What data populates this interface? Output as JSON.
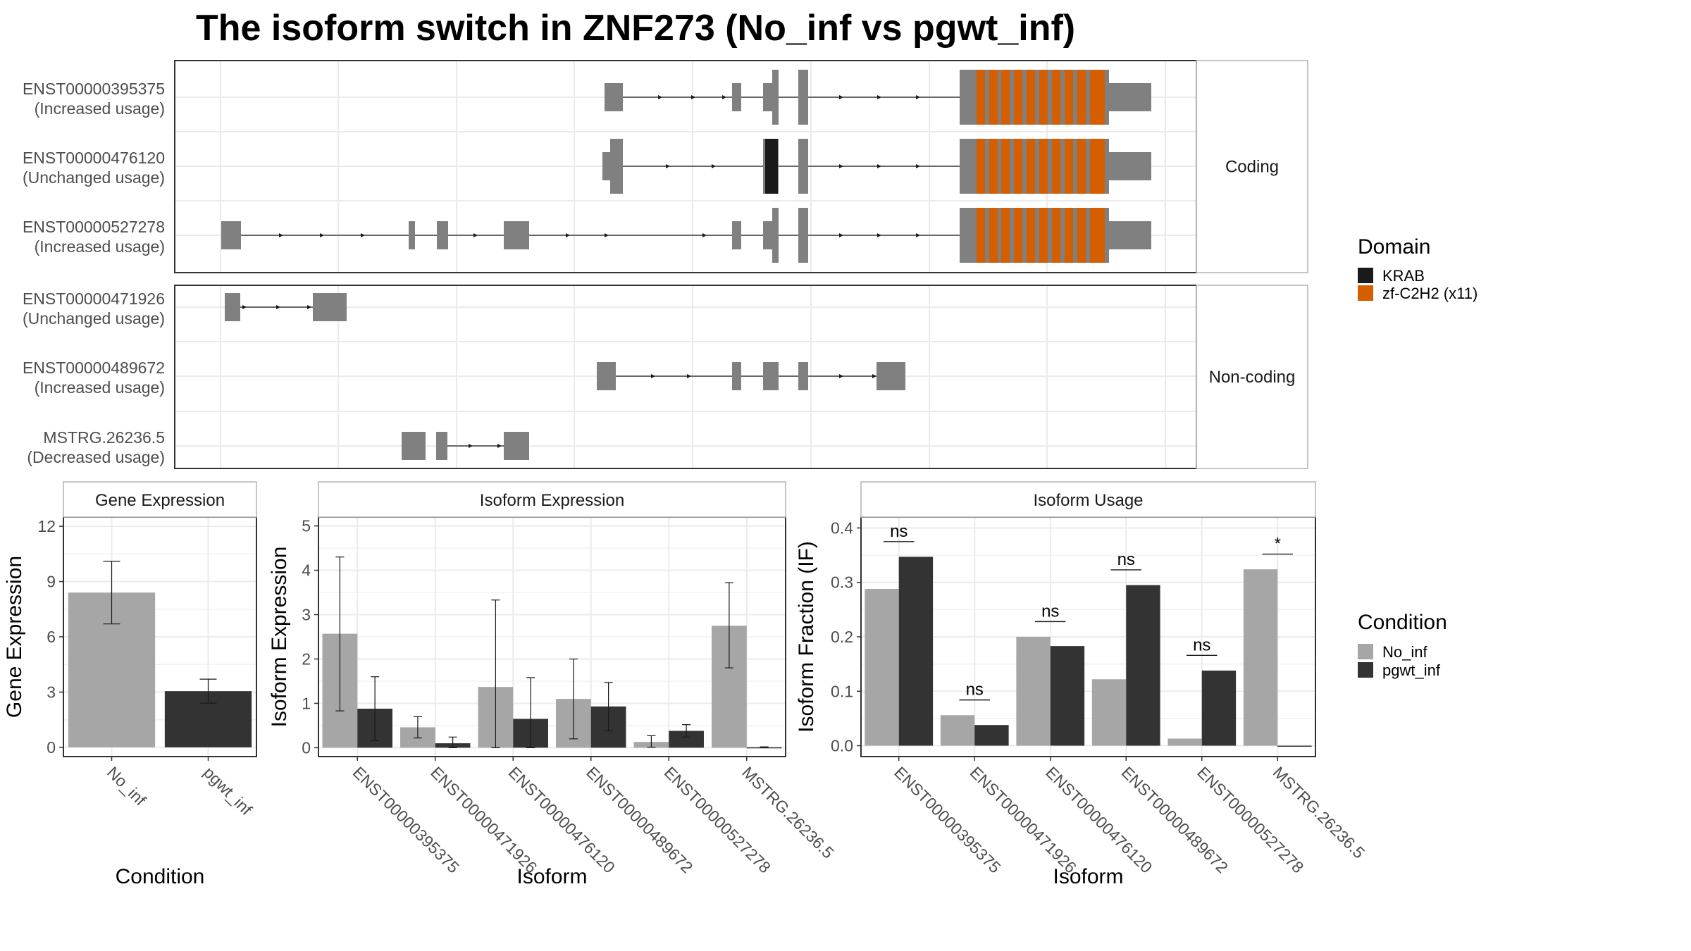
{
  "title": "The isoform switch in ZNF273 (No_inf vs pgwt_inf)",
  "colors": {
    "exon": "#808080",
    "KRAB": "#1a1a1a",
    "zf": "#d55e00",
    "No_inf": "#a6a6a6",
    "pgwt_inf": "#333333",
    "grid": "#ebebeb",
    "panel_border": "#333333",
    "strip_border": "#b3b3b3"
  },
  "structure": {
    "facets": [
      "Coding",
      "Non-coding"
    ],
    "tracks": [
      {
        "facet": "Coding",
        "id": "ENST00000395375",
        "usage": "(Increased usage)"
      },
      {
        "facet": "Coding",
        "id": "ENST00000476120",
        "usage": "(Unchanged usage)"
      },
      {
        "facet": "Coding",
        "id": "ENST00000527278",
        "usage": "(Increased usage)"
      },
      {
        "facet": "Non-coding",
        "id": "ENST00000471926",
        "usage": "(Unchanged usage)"
      },
      {
        "facet": "Non-coding",
        "id": "ENST00000489672",
        "usage": "(Increased usage)"
      },
      {
        "facet": "Non-coding",
        "id": "MSTRG.26236.5",
        "usage": "(Decreased usage)"
      }
    ]
  },
  "legend": {
    "domain_title": "Domain",
    "domain_items": [
      {
        "label": "KRAB",
        "color": "#1a1a1a"
      },
      {
        "label": "zf-C2H2 (x11)",
        "color": "#d55e00"
      }
    ],
    "condition_title": "Condition",
    "condition_items": [
      {
        "label": "No_inf",
        "color": "#a6a6a6"
      },
      {
        "label": "pgwt_inf",
        "color": "#333333"
      }
    ]
  },
  "chart_data": [
    {
      "type": "bar",
      "title": "Gene Expression",
      "xlabel": "Condition",
      "ylabel": "Gene Expression",
      "categories": [
        "No_inf",
        "pgwt_inf"
      ],
      "values": [
        8.4,
        3.05
      ],
      "error": [
        [
          6.7,
          10.1
        ],
        [
          2.4,
          3.7
        ]
      ],
      "ylim": [
        -0.5,
        12.5
      ],
      "yticks": [
        0,
        3,
        6,
        9,
        12
      ]
    },
    {
      "type": "bar",
      "title": "Isoform Expression",
      "xlabel": "Isoform",
      "ylabel": "Isoform Expression",
      "categories": [
        "ENST00000395375",
        "ENST00000471926",
        "ENST00000476120",
        "ENST00000489672",
        "ENST00000527278",
        "MSTRG.26236.5"
      ],
      "series": [
        {
          "name": "No_inf",
          "values": [
            2.57,
            0.46,
            1.37,
            1.1,
            0.13,
            2.75
          ],
          "error": [
            [
              0.83,
              4.3
            ],
            [
              0.22,
              0.7
            ],
            [
              0.0,
              3.33
            ],
            [
              0.2,
              2.0
            ],
            [
              0.01,
              0.27
            ],
            [
              1.8,
              3.72
            ]
          ]
        },
        {
          "name": "pgwt_inf",
          "values": [
            0.88,
            0.1,
            0.65,
            0.93,
            0.38,
            0.01
          ],
          "error": [
            [
              0.16,
              1.6
            ],
            [
              0.0,
              0.24
            ],
            [
              0.0,
              1.58
            ],
            [
              0.38,
              1.47
            ],
            [
              0.24,
              0.52
            ],
            [
              0.0,
              0.02
            ]
          ]
        }
      ],
      "ylim": [
        -0.2,
        5.2
      ],
      "yticks": [
        0,
        1,
        2,
        3,
        4,
        5
      ]
    },
    {
      "type": "bar",
      "title": "Isoform Usage",
      "xlabel": "Isoform",
      "ylabel": "Isoform Fraction (IF)",
      "categories": [
        "ENST00000395375",
        "ENST00000471926",
        "ENST00000476120",
        "ENST00000489672",
        "ENST00000527278",
        "MSTRG.26236.5"
      ],
      "series": [
        {
          "name": "No_inf",
          "values": [
            0.288,
            0.056,
            0.2,
            0.122,
            0.013,
            0.324
          ]
        },
        {
          "name": "pgwt_inf",
          "values": [
            0.347,
            0.038,
            0.183,
            0.295,
            0.138,
            0.0
          ]
        }
      ],
      "significance": [
        "ns",
        "ns",
        "ns",
        "ns",
        "ns",
        "*"
      ],
      "ylim": [
        -0.02,
        0.42
      ],
      "yticks": [
        0.0,
        0.1,
        0.2,
        0.3,
        0.4
      ],
      "yticklabels": [
        "0.0",
        "0.1",
        "0.2",
        "0.3",
        "0.4"
      ]
    }
  ]
}
